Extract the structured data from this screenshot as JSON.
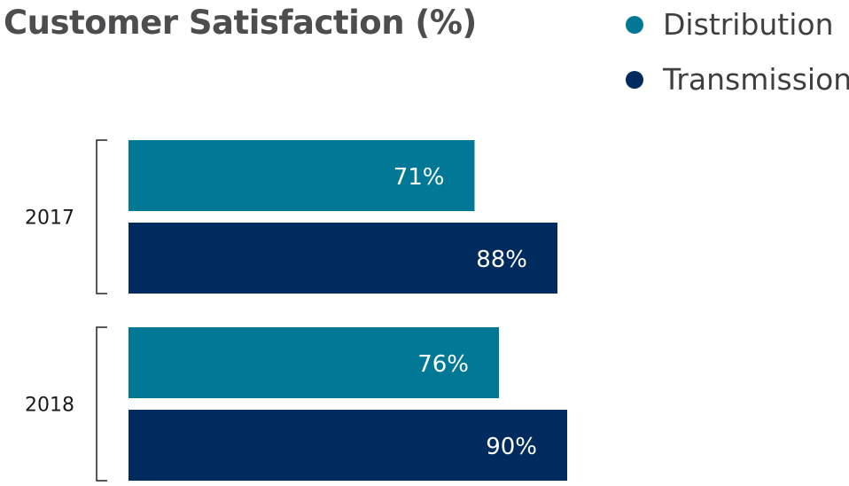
{
  "chart_data": {
    "type": "bar",
    "orientation": "horizontal",
    "title": "Customer Satisfaction (%)",
    "categories": [
      "2017",
      "2018"
    ],
    "series": [
      {
        "name": "Distribution",
        "values": [
          71,
          76
        ],
        "labels": [
          "71%",
          "76%"
        ],
        "color": "#007896"
      },
      {
        "name": "Transmission",
        "values": [
          88,
          90
        ],
        "labels": [
          "88%",
          "90%"
        ],
        "color": "#002b5e"
      }
    ],
    "legend_position": "top-right",
    "grid": false
  }
}
